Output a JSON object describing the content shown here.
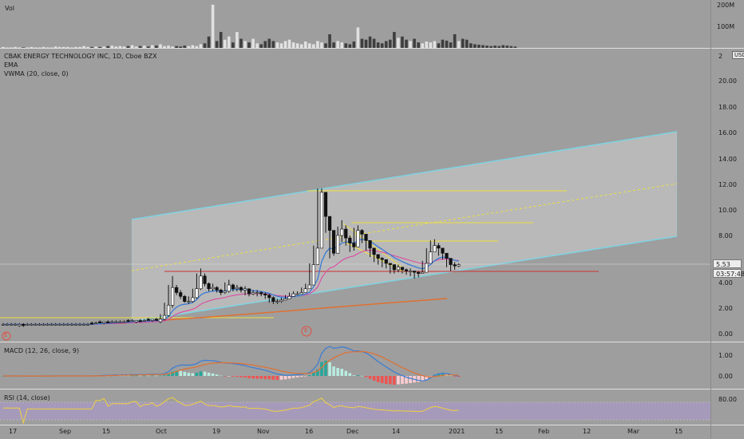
{
  "vol_panel": {
    "label": "Vol",
    "scale": [
      "200M",
      "100M"
    ],
    "bars": [
      2,
      1,
      1,
      2,
      1,
      1,
      1,
      2,
      1,
      1,
      2,
      1,
      1,
      3,
      2,
      2,
      2,
      1,
      2,
      2,
      4,
      2,
      2,
      3,
      2,
      3,
      4,
      5,
      3,
      4,
      3,
      4,
      6,
      3,
      4,
      5,
      3,
      6,
      5,
      8,
      4,
      5,
      3,
      4,
      3,
      5,
      4,
      6,
      4,
      8,
      10,
      25,
      95,
      15,
      35,
      18,
      25,
      12,
      35,
      20,
      15,
      12,
      20,
      10,
      8,
      15,
      20,
      15,
      12,
      10,
      15,
      18,
      12,
      10,
      8,
      14,
      10,
      8,
      15,
      12,
      10,
      30,
      12,
      15,
      12,
      10,
      8,
      14,
      45,
      20,
      18,
      25,
      20,
      12,
      10,
      15,
      18,
      35,
      22,
      25,
      18,
      15,
      20,
      12,
      10,
      14,
      12,
      15,
      10,
      18,
      16,
      12,
      30,
      15,
      20,
      18,
      10,
      8,
      7,
      6,
      5,
      4,
      5,
      4,
      6,
      5,
      4,
      3
    ],
    "bar_colors": "mixed"
  },
  "main_panel": {
    "legend": [
      "CBAK ENERGY TECHNOLOGY INC, 1D, Cboe BZX",
      "EMA",
      "VWMA (20, close, 0)"
    ],
    "y_ticks": [
      "20.00",
      "18.00",
      "16.00",
      "14.00",
      "12.00",
      "10.00",
      "8.00",
      "6.00",
      "4.00",
      "2.00",
      "0.00"
    ],
    "currency": "USD",
    "last_price": "5.53",
    "countdown": "03:57:48",
    "top_tick": "2"
  },
  "macd_panel": {
    "label": "MACD (12, 26, close, 9)",
    "y_ticks": [
      "1.00",
      "0.00"
    ]
  },
  "rsi_panel": {
    "label": "RSI (14, close)",
    "y_ticks": [
      "80.00"
    ]
  },
  "x_axis": [
    "17",
    "Sep",
    "15",
    "Oct",
    "19",
    "Nov",
    "16",
    "Dec",
    "14",
    "2021",
    "15",
    "Feb",
    "12",
    "Mar",
    "15"
  ],
  "markers": [
    "E",
    "E"
  ],
  "colors": {
    "background": "#9e9e9e",
    "channel": "#7fd3e3",
    "channel_fill": "#bdbdbd",
    "yellow": "#f0e040",
    "red": "#d03030",
    "orange": "#e07030",
    "blue": "#3a7bd5",
    "pink": "#e040a0",
    "macd_line": "#3a7bd5",
    "signal_line": "#e07030",
    "rsi_line": "#f0d040",
    "rsi_band": "#a999c6"
  },
  "chart_data": {
    "type": "candlestick",
    "ticker": "CBAK ENERGY TECHNOLOGY INC",
    "interval": "1D",
    "exchange": "Cboe BZX",
    "ylim": [
      0,
      22
    ],
    "close_series": [
      0.8,
      0.8,
      0.8,
      0.8,
      0.8,
      0.7,
      0.8,
      0.8,
      0.8,
      0.8,
      0.8,
      0.8,
      0.8,
      0.8,
      0.8,
      0.8,
      0.8,
      0.8,
      0.8,
      0.8,
      0.8,
      0.8,
      0.8,
      0.9,
      0.9,
      1.0,
      0.9,
      1.0,
      1.0,
      1.0,
      1.0,
      1.0,
      1.1,
      1.1,
      1.0,
      1.1,
      1.1,
      1.2,
      1.1,
      1.2,
      1.5,
      2.3,
      3.7,
      3.3,
      3.0,
      2.6,
      2.6,
      2.9,
      3.6,
      4.6,
      4.0,
      3.6,
      3.7,
      3.5,
      3.3,
      3.4,
      3.9,
      3.6,
      3.7,
      3.5,
      3.6,
      3.2,
      3.3,
      3.3,
      3.2,
      3.1,
      2.9,
      2.6,
      2.6,
      2.7,
      2.8,
      3.0,
      3.2,
      3.2,
      3.3,
      3.6,
      3.9,
      5.5,
      6.8,
      11.2,
      9.3,
      8.2,
      6.4,
      7.8,
      8.3,
      7.6,
      7.2,
      6.9,
      8.2,
      7.9,
      7.4,
      6.8,
      6.3,
      6.0,
      5.9,
      5.6,
      5.5,
      5.1,
      5.3,
      5.1,
      5.0,
      5.0,
      4.9,
      4.8,
      4.9,
      5.6,
      6.5,
      7.0,
      6.8,
      6.4,
      6.0,
      5.5,
      5.4,
      5.5
    ],
    "open_series": [
      0.8,
      0.8,
      0.8,
      0.8,
      0.7,
      0.8,
      0.8,
      0.8,
      0.8,
      0.8,
      0.8,
      0.8,
      0.8,
      0.8,
      0.8,
      0.8,
      0.8,
      0.8,
      0.8,
      0.8,
      0.8,
      0.8,
      0.9,
      0.9,
      1.0,
      0.9,
      1.0,
      1.0,
      1.0,
      1.0,
      1.0,
      1.1,
      1.1,
      1.0,
      1.1,
      1.1,
      1.2,
      1.1,
      1.2,
      1.0,
      1.2,
      1.5,
      2.3,
      3.7,
      3.3,
      3.0,
      2.6,
      2.6,
      2.9,
      3.6,
      4.6,
      4.0,
      3.6,
      3.7,
      3.5,
      3.3,
      3.4,
      3.9,
      3.6,
      3.7,
      3.5,
      3.6,
      3.2,
      3.3,
      3.3,
      3.2,
      3.1,
      2.9,
      2.6,
      2.6,
      2.7,
      2.8,
      3.0,
      3.2,
      3.2,
      3.3,
      3.6,
      3.9,
      5.5,
      6.8,
      11.2,
      9.3,
      8.2,
      6.4,
      7.8,
      8.3,
      7.6,
      7.2,
      6.9,
      8.2,
      7.9,
      7.4,
      6.8,
      6.3,
      6.0,
      5.9,
      5.6,
      5.5,
      5.1,
      5.3,
      5.1,
      5.0,
      5.0,
      4.9,
      4.8,
      4.9,
      5.6,
      6.5,
      7.0,
      6.8,
      6.4,
      6.0,
      5.5,
      5.4
    ],
    "high_series": [
      0.9,
      0.9,
      0.9,
      0.9,
      0.9,
      0.9,
      0.9,
      0.9,
      0.9,
      0.9,
      0.9,
      0.9,
      0.9,
      0.9,
      0.9,
      0.9,
      0.9,
      0.9,
      0.9,
      0.9,
      0.9,
      0.9,
      1.0,
      1.0,
      1.1,
      1.0,
      1.1,
      1.1,
      1.1,
      1.1,
      1.1,
      1.2,
      1.2,
      1.1,
      1.2,
      1.2,
      1.3,
      1.2,
      1.3,
      1.6,
      2.5,
      3.9,
      4.6,
      3.9,
      3.5,
      3.1,
      3.0,
      3.6,
      4.8,
      5.2,
      4.8,
      4.1,
      4.0,
      3.8,
      3.6,
      4.1,
      4.3,
      4.0,
      3.9,
      3.8,
      3.8,
      3.6,
      3.5,
      3.5,
      3.4,
      3.3,
      3.2,
      3.0,
      2.8,
      2.9,
      3.1,
      3.3,
      3.4,
      3.4,
      3.7,
      4.0,
      5.6,
      7.0,
      11.5,
      11.5,
      10.2,
      9.0,
      8.2,
      8.5,
      9.0,
      8.6,
      7.8,
      8.4,
      8.6,
      8.3,
      7.6,
      7.0,
      6.6,
      6.3,
      6.1,
      5.8,
      5.6,
      5.5,
      5.5,
      5.3,
      5.2,
      5.2,
      5.0,
      5.0,
      5.8,
      6.8,
      7.4,
      7.5,
      7.2,
      6.7,
      6.2,
      5.8,
      5.7,
      5.6
    ],
    "low_series": [
      0.7,
      0.7,
      0.7,
      0.7,
      0.6,
      0.6,
      0.7,
      0.7,
      0.7,
      0.7,
      0.7,
      0.7,
      0.7,
      0.7,
      0.7,
      0.7,
      0.7,
      0.7,
      0.7,
      0.7,
      0.7,
      0.7,
      0.8,
      0.8,
      0.9,
      0.8,
      0.9,
      0.9,
      0.9,
      0.9,
      0.9,
      1.0,
      1.0,
      0.9,
      1.0,
      1.0,
      1.1,
      1.0,
      1.1,
      0.9,
      1.1,
      1.4,
      2.1,
      3.1,
      2.8,
      2.5,
      2.4,
      2.5,
      2.8,
      3.5,
      3.8,
      3.4,
      3.4,
      3.3,
      3.1,
      3.2,
      3.3,
      3.4,
      3.4,
      3.3,
      3.1,
      3.0,
      3.1,
      3.0,
      3.0,
      2.8,
      2.5,
      2.4,
      2.4,
      2.5,
      2.7,
      2.9,
      3.0,
      3.1,
      3.2,
      3.5,
      3.8,
      5.2,
      6.5,
      8.5,
      8.0,
      6.0,
      6.2,
      7.0,
      7.3,
      7.0,
      6.5,
      6.6,
      7.6,
      7.2,
      6.6,
      6.1,
      5.7,
      5.5,
      5.3,
      5.2,
      4.8,
      4.8,
      4.9,
      4.8,
      4.7,
      4.6,
      4.4,
      4.5,
      4.8,
      5.4,
      6.2,
      6.5,
      6.2,
      5.9,
      5.3,
      5.0,
      5.1,
      5.3
    ],
    "annotations": [
      "E",
      "E"
    ]
  }
}
